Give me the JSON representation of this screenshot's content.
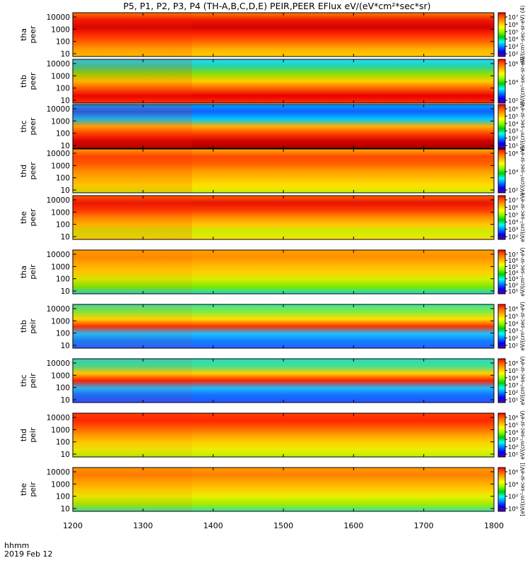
{
  "title": "P5, P1, P2, P3, P4 (TH-A,B,C,D,E) PEIR,PEER EFlux eV/(eV*cm²*sec*sr)",
  "time_axis": {
    "label_line1": "hhmm",
    "label_line2": "2019 Feb 12",
    "ticks": [
      "1200",
      "1300",
      "1400",
      "1500",
      "1600",
      "1700",
      "1800"
    ],
    "range": [
      1200,
      1800
    ]
  },
  "colors": {
    "scale": [
      "#ff0000",
      "#ff6600",
      "#ffb300",
      "#ffff00",
      "#7fff00",
      "#00cc00",
      "#00ffff",
      "#0080ff",
      "#0000ff",
      "#5a00a0"
    ]
  },
  "chart_data": {
    "type": "heatmap",
    "y_scale": "log",
    "panels": [
      {
        "probe": "tha",
        "species": "peer",
        "ylabels": [
          "10000",
          "1000",
          "100",
          "10"
        ],
        "cb_ticks": [
          "10⁷",
          "10⁶",
          "10⁵",
          "10⁴",
          "10³",
          "10²"
        ],
        "cb_label": "eV/(cm²-sec-sr-eV) (4)"
      },
      {
        "probe": "thb",
        "species": "peer",
        "ylabels": [
          "10000",
          "1000",
          "100",
          "10"
        ],
        "cb_ticks": [
          "10⁶",
          "10⁴",
          "10²"
        ],
        "cb_label": "eV/(cm²-sec-sr-eV)"
      },
      {
        "probe": "thc",
        "species": "peer",
        "ylabels": [
          "10000",
          "1000",
          "100",
          "10"
        ],
        "cb_ticks": [
          "10⁶",
          "10⁵",
          "10⁴",
          "10³",
          "10²",
          "10¹"
        ],
        "cb_label": "eV/(cm²-sec-sr-eV)"
      },
      {
        "probe": "thd",
        "species": "peer",
        "ylabels": [
          "10000",
          "1000",
          "100",
          "10"
        ],
        "cb_ticks": [
          "10⁶",
          "10⁴",
          "10²"
        ],
        "cb_label": "eV/(cm²-sec-sr-eV)"
      },
      {
        "probe": "the",
        "species": "peer",
        "ylabels": [
          "10000",
          "1000",
          "100",
          "10"
        ],
        "cb_ticks": [
          "10⁷",
          "10⁶",
          "10⁵",
          "10⁴",
          "10³",
          "10²"
        ],
        "cb_label": "eV/(cm²-sec-sr-eV)"
      },
      {
        "probe": "tha",
        "species": "peir",
        "ylabels": [
          "10000",
          "1000",
          "100",
          "10"
        ],
        "cb_ticks": [
          "10⁷",
          "10⁶",
          "10⁵",
          "10⁴",
          "10³",
          "10²",
          "10¹"
        ],
        "cb_label": "eV/(cm²-sec-sr-eV)"
      },
      {
        "probe": "thb",
        "species": "peir",
        "ylabels": [
          "10000",
          "1000",
          "100",
          "10"
        ],
        "cb_ticks": [
          "10⁶",
          "10⁵",
          "10⁴",
          "10³",
          "10²",
          "10¹"
        ],
        "cb_label": "eV/(cm²-sec-sr-eV)"
      },
      {
        "probe": "thc",
        "species": "peir",
        "ylabels": [
          "10000",
          "1000",
          "100",
          "10"
        ],
        "cb_ticks": [
          "10⁶",
          "10⁵",
          "10⁴",
          "10³",
          "10²",
          "10¹"
        ],
        "cb_label": "eV/(cm²-sec-sr-eV)"
      },
      {
        "probe": "thd",
        "species": "peir",
        "ylabels": [
          "10000",
          "1000",
          "100",
          "10"
        ],
        "cb_ticks": [
          "10⁶",
          "10⁵",
          "10⁴",
          "10³",
          "10²",
          "10¹"
        ],
        "cb_label": "eV/(cm²-sec-sr-eV)"
      },
      {
        "probe": "the",
        "species": "peir",
        "ylabels": [
          "10000",
          "1000",
          "100",
          "10"
        ],
        "cb_ticks": [
          "10⁶",
          "10⁴",
          "10²",
          "10⁰"
        ],
        "cb_label": "[eV/(cm²-sec-sr-eV)]"
      }
    ]
  }
}
